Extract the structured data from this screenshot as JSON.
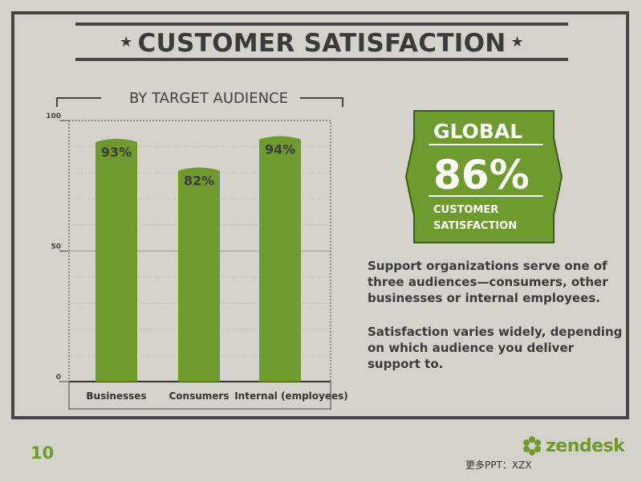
{
  "header": {
    "title": "CUSTOMER SATISFACTION",
    "star_left": "★",
    "star_right": "★"
  },
  "chart_data": {
    "type": "bar",
    "title": "BY TARGET AUDIENCE",
    "categories": [
      "Businesses",
      "Consumers",
      "Internal (employees)"
    ],
    "values": [
      93,
      82,
      94
    ],
    "data_labels": [
      "93%",
      "82%",
      "94%"
    ],
    "yticks": [
      0,
      50,
      100
    ],
    "ylim": [
      0,
      100
    ],
    "bar_color": "#6e9a2e",
    "grid": true
  },
  "badge": {
    "label": "GLOBAL",
    "value": "86%",
    "caption_line1": "CUSTOMER",
    "caption_line2": "SATISFACTION",
    "color": "#6e9a2e"
  },
  "text": {
    "paragraph1_lines": [
      "Support organizations serve one of",
      "three audiences—consumers, other",
      "businesses or internal employees."
    ],
    "paragraph2_lines": [
      "Satisfaction varies widely, depending",
      "on which audience you deliver",
      "support to."
    ]
  },
  "footer": {
    "page_number": "10",
    "logo_text": "zendesk",
    "note": "更多PPT：XZX"
  }
}
